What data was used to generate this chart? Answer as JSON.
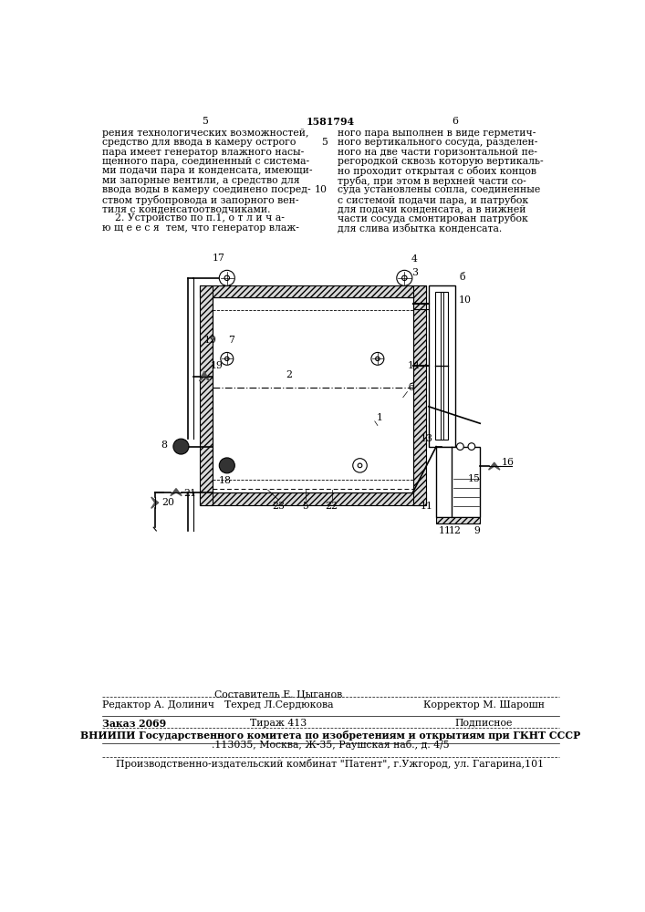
{
  "title": "1581794",
  "page_left": "5",
  "page_right": "6",
  "text_left": "рения технологических возможностей,\nсредство для ввода в камеру острого\nпара имеет генератор влажного насы-\nщенного пара, соединенный с система-\nми подачи пара и конденсата, имеющи-\nми запорные вентили, а средство для\nввода воды в камеру соединено посред-\nством трубопровода и запорного вен-\nтиля с конденсатоотводчиками.\n    2. Устройство по п.1, о т л и ч а-\nю щ е е с я  тем, что генератор влаж-",
  "text_right": "ного пара выполнен в виде герметич-\nного вертикального сосуда, разделен-\nного на две части горизонтальной пе-\nрегородкой сквозь которую вертикаль-\nно проходит открытая с обоих концов\nтруба, при этом в верхней части со-\nсуда установлены сопла, соединенные\nс системой подачи пара, и патрубок\nдля подачи конденсата, а в нижней\nчасти сосуда смонтирован патрубок\nдля слива избытка конденсата.",
  "footer_editor": "Редактор А. Долинич",
  "footer_comp": "Составитель Е. Цыганов",
  "footer_tech": "Техред Л.Сердюкова",
  "footer_corr": "Корректор М. Шарошн",
  "footer_order": "Заказ 2069",
  "footer_tirazh": "Тираж 413",
  "footer_podp": "Подписное",
  "footer_vnipi1": "ВНИИПИ Государственного комитета по изобретениям и открытиям при ГКНТ СССР",
  "footer_vnipi2": ".113035, Москва, Ж-35, Раушская наб., д. 4/5",
  "footer_patent": "Производственно-издательский комбинат \"Патент\", г.Ужгород, ул. Гагарина,101",
  "bg_color": "#ffffff",
  "lc": "#000000"
}
